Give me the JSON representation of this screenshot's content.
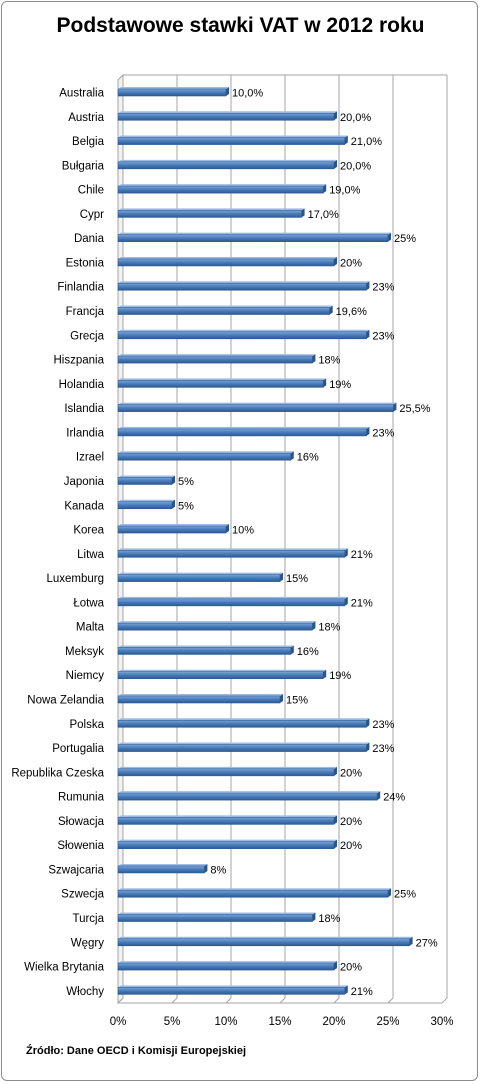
{
  "title": "Podstawowe stawki VAT w 2012 roku",
  "source": "Źródło: Dane OECD i Komisji  Europejskiej",
  "chart_data": {
    "type": "bar",
    "orientation": "horizontal",
    "title": "Podstawowe stawki VAT w 2012 roku",
    "categories": [
      "Australia",
      "Austria",
      "Belgia",
      "Bułgaria",
      "Chile",
      "Cypr",
      "Dania",
      "Estonia",
      "Finlandia",
      "Francja",
      "Grecja",
      "Hiszpania",
      "Holandia",
      "Islandia",
      "Irlandia",
      "Izrael",
      "Japonia",
      "Kanada",
      "Korea",
      "Litwa",
      "Luxemburg",
      "Łotwa",
      "Malta",
      "Meksyk",
      "Niemcy",
      "Nowa Zelandia",
      "Polska",
      "Portugalia",
      "Republika Czeska",
      "Rumunia",
      "Słowacja",
      "Słowenia",
      "Szwajcaria",
      "Szwecja",
      "Turcja",
      "Węgry",
      "Wielka Brytania",
      "Włochy"
    ],
    "values": [
      10,
      20,
      21,
      20,
      19,
      17,
      25,
      20,
      23,
      19.6,
      23,
      18,
      19,
      25.5,
      23,
      16,
      5,
      5,
      10,
      21,
      15,
      21,
      18,
      16,
      19,
      15,
      23,
      23,
      20,
      24,
      20,
      20,
      8,
      25,
      18,
      27,
      20,
      21
    ],
    "value_labels": [
      "10,0%",
      "20,0%",
      "21,0%",
      "20,0%",
      "19,0%",
      "17,0%",
      "25%",
      "20%",
      "23%",
      "19,6%",
      "23%",
      "18%",
      "19%",
      "25,5%",
      "23%",
      "16%",
      "5%",
      "5%",
      "10%",
      "21%",
      "15%",
      "21%",
      "18%",
      "16%",
      "19%",
      "15%",
      "23%",
      "23%",
      "20%",
      "24%",
      "20%",
      "20%",
      "8%",
      "25%",
      "18%",
      "27%",
      "20%",
      "21%"
    ],
    "xlim": [
      0,
      30
    ],
    "ticks": [
      "0%",
      "5%",
      "10%",
      "15%",
      "20%",
      "25%",
      "30%"
    ],
    "grid": true,
    "bar_color": "#4a7ebb"
  }
}
